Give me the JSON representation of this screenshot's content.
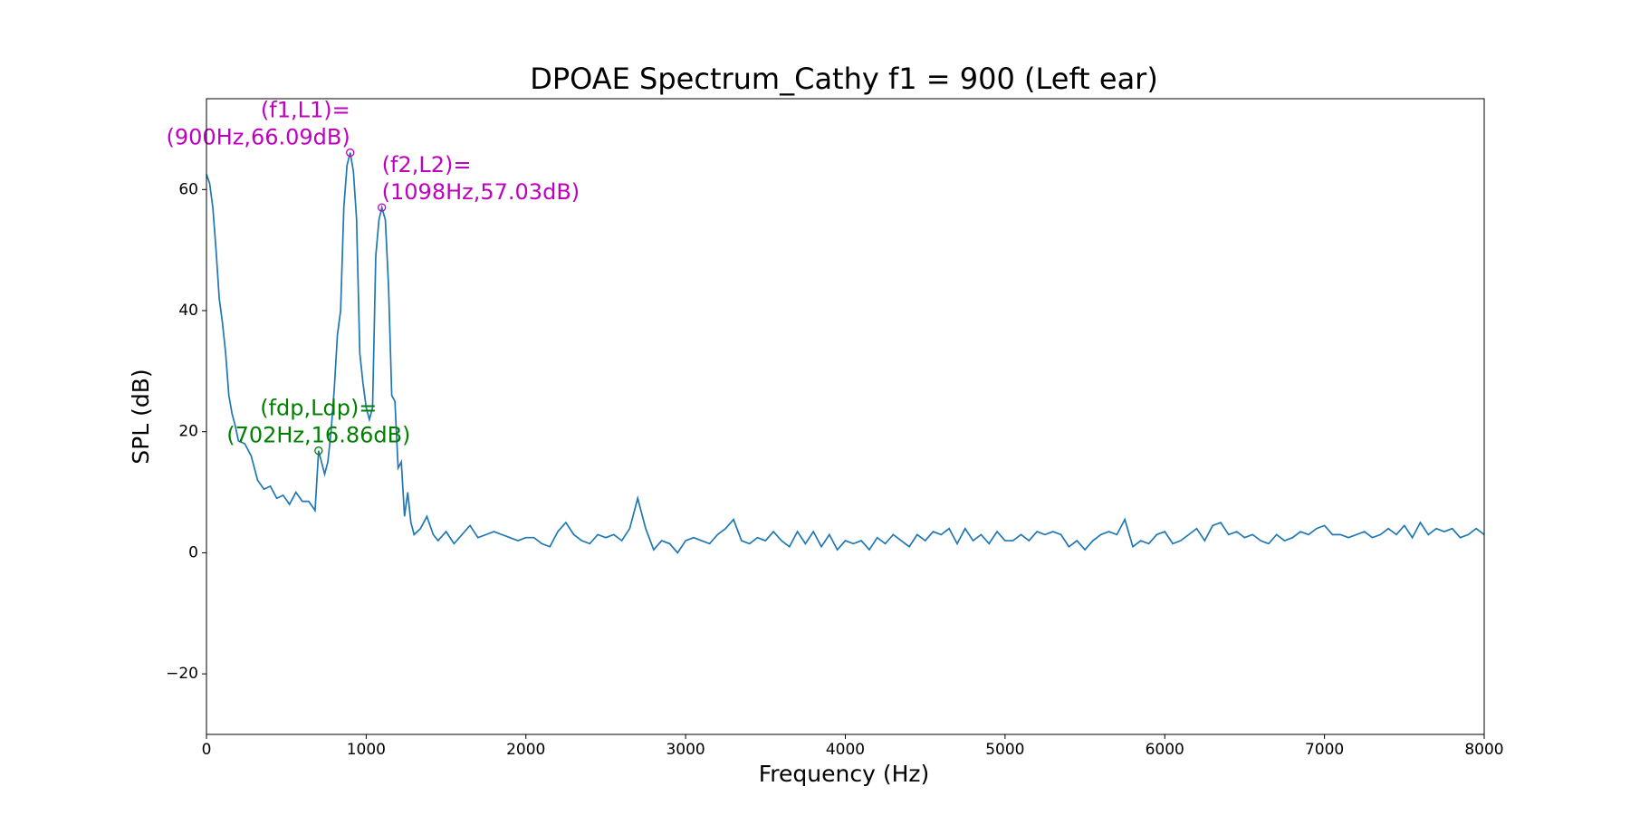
{
  "chart_data": {
    "type": "line",
    "title": "DPOAE Spectrum_Cathy f1 = 900 (Left ear)",
    "x_label": "Frequency (Hz)",
    "y_label": "SPL (dB)",
    "xlim": [
      0,
      8000
    ],
    "ylim": [
      -30,
      75
    ],
    "xticks": [
      0,
      1000,
      2000,
      3000,
      4000,
      5000,
      6000,
      7000,
      8000
    ],
    "yticks": [
      {
        "value": -20,
        "label": "−20"
      },
      0,
      20,
      40,
      60
    ],
    "x": [
      0,
      20,
      40,
      60,
      80,
      100,
      120,
      140,
      160,
      180,
      200,
      240,
      280,
      320,
      360,
      400,
      440,
      480,
      520,
      560,
      600,
      640,
      680,
      702,
      720,
      740,
      760,
      780,
      800,
      820,
      840,
      860,
      880,
      900,
      920,
      940,
      960,
      980,
      1000,
      1020,
      1040,
      1060,
      1080,
      1098,
      1120,
      1140,
      1160,
      1180,
      1200,
      1220,
      1240,
      1260,
      1280,
      1300,
      1340,
      1380,
      1420,
      1450,
      1500,
      1550,
      1600,
      1650,
      1700,
      1750,
      1800,
      1850,
      1900,
      1950,
      2000,
      2050,
      2100,
      2150,
      2200,
      2250,
      2300,
      2350,
      2400,
      2450,
      2500,
      2550,
      2600,
      2650,
      2700,
      2750,
      2800,
      2850,
      2900,
      2950,
      3000,
      3050,
      3100,
      3150,
      3200,
      3250,
      3300,
      3350,
      3400,
      3450,
      3500,
      3550,
      3600,
      3650,
      3700,
      3750,
      3800,
      3850,
      3900,
      3950,
      4000,
      4050,
      4100,
      4150,
      4200,
      4250,
      4300,
      4350,
      4400,
      4450,
      4500,
      4550,
      4600,
      4650,
      4700,
      4750,
      4800,
      4850,
      4900,
      4950,
      5000,
      5050,
      5100,
      5150,
      5200,
      5250,
      5300,
      5350,
      5400,
      5450,
      5500,
      5550,
      5600,
      5650,
      5700,
      5750,
      5800,
      5850,
      5900,
      5950,
      6000,
      6050,
      6100,
      6150,
      6200,
      6250,
      6300,
      6350,
      6400,
      6450,
      6500,
      6550,
      6600,
      6650,
      6700,
      6750,
      6800,
      6850,
      6900,
      6950,
      7000,
      7050,
      7100,
      7150,
      7200,
      7250,
      7300,
      7350,
      7400,
      7450,
      7500,
      7550,
      7600,
      7650,
      7700,
      7750,
      7800,
      7850,
      7900,
      7950,
      8000
    ],
    "series": [
      {
        "color": "#1f77b4",
        "values": [
          62.5,
          61,
          57,
          50,
          42,
          38,
          33,
          26,
          23,
          21,
          18.5,
          18,
          16,
          12,
          10.5,
          11,
          9,
          9.5,
          8,
          10,
          8.5,
          8.5,
          7,
          16.86,
          15,
          13,
          15,
          20,
          27,
          36,
          40,
          57,
          64,
          66.09,
          63,
          55,
          33,
          28,
          24,
          22,
          24,
          49,
          55,
          57.03,
          55,
          44,
          26,
          25,
          14,
          15,
          6,
          10,
          5,
          3,
          4,
          6,
          3,
          2,
          3.5,
          1.5,
          3,
          4.5,
          2.5,
          3,
          3.5,
          3,
          2.5,
          2,
          2.5,
          2.5,
          1.5,
          1,
          3.5,
          5,
          3,
          2,
          1.5,
          3,
          2.5,
          3,
          2,
          4,
          9,
          4,
          0.5,
          2,
          1.5,
          0,
          2,
          2.5,
          2,
          1.5,
          3,
          4,
          5.5,
          2,
          1.5,
          2.5,
          2,
          3.5,
          2,
          1,
          3.5,
          1.5,
          3.5,
          1,
          3,
          0.5,
          2,
          1.5,
          2,
          0.5,
          2.5,
          1.5,
          3,
          2,
          1,
          3,
          2,
          3.5,
          3,
          4,
          1.5,
          4,
          2,
          3,
          1.5,
          3.5,
          2,
          2,
          3,
          2,
          3.5,
          3,
          3.5,
          3,
          1,
          2,
          0.5,
          2,
          3,
          3.5,
          3,
          5.5,
          1,
          2,
          1.5,
          3,
          3.5,
          1.5,
          2,
          3,
          4,
          2,
          4.5,
          5,
          3,
          3.5,
          2.5,
          3,
          2,
          1.5,
          3,
          2,
          2.5,
          3.5,
          3,
          4,
          4.5,
          3,
          3,
          2.5,
          3,
          3.5,
          2.5,
          3,
          4,
          3,
          4.5,
          2.5,
          5,
          3,
          4,
          3.5,
          4,
          2.5,
          3,
          4,
          3
        ]
      }
    ],
    "annotations": [
      {
        "lines": [
          "(f1,L1)=",
          "(900Hz,66.09dB)"
        ],
        "x": 900,
        "y": 66.09,
        "color": "#bf00bf"
      },
      {
        "lines": [
          "(f2,L2)=",
          "(1098Hz,57.03dB)"
        ],
        "x": 1098,
        "y": 57.03,
        "color": "#bf00bf"
      },
      {
        "lines": [
          "(fdp,Ldp)=",
          "(702Hz,16.86dB)"
        ],
        "x": 702,
        "y": 16.86,
        "color": "#008000"
      }
    ]
  }
}
